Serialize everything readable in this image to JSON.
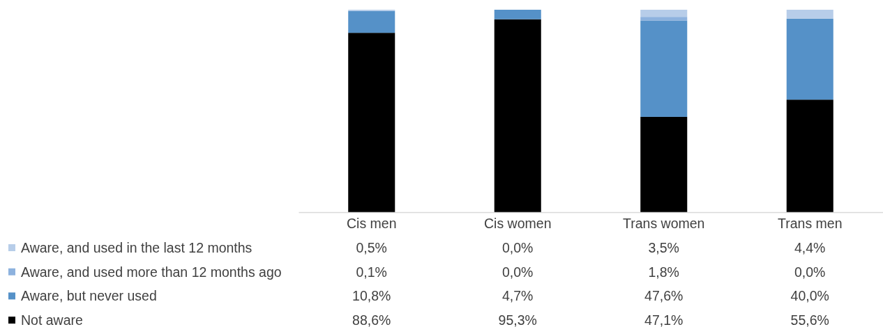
{
  "chart_data": {
    "type": "bar",
    "stacked": true,
    "categories": [
      "Cis men",
      "Cis women",
      "Trans women",
      "Trans men"
    ],
    "ylim": [
      0,
      100
    ],
    "tick_labels": "x",
    "legend": "bottom left",
    "series": [
      {
        "name": "Not aware",
        "color": "#000000",
        "values": [
          88.6,
          95.3,
          47.1,
          55.6
        ],
        "value_labels": [
          "88,6%",
          "95,3%",
          "47,1%",
          "55,6%"
        ]
      },
      {
        "name": "Aware, but never used",
        "color": "#5591c8",
        "values": [
          10.8,
          4.7,
          47.6,
          40.0
        ],
        "value_labels": [
          "10,8%",
          "4,7%",
          "47,6%",
          "40,0%"
        ]
      },
      {
        "name": "Aware, and used more than 12 months ago",
        "color": "#8db2de",
        "values": [
          0.1,
          0.0,
          1.8,
          0.0
        ],
        "value_labels": [
          "0,1%",
          "0,0%",
          "1,8%",
          "0,0%"
        ]
      },
      {
        "name": "Aware, and used in the last 12 months",
        "color": "#b7cde9",
        "values": [
          0.5,
          0.0,
          3.5,
          4.4
        ],
        "value_labels": [
          "0,5%",
          "0,0%",
          "3,5%",
          "4,4%"
        ]
      }
    ]
  }
}
